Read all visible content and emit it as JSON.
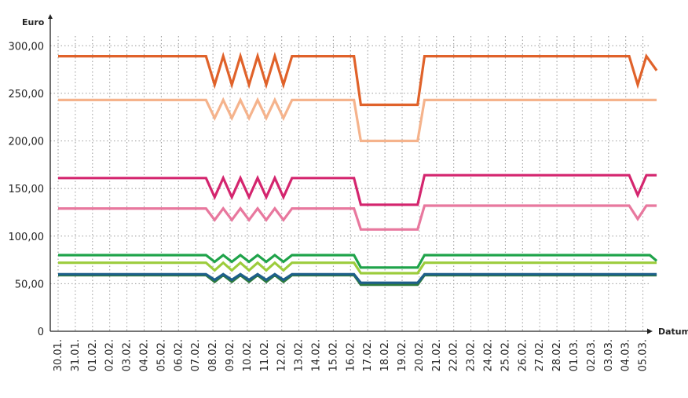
{
  "chart_data": {
    "type": "line",
    "ylabel": "Euro",
    "xlabel": "Datum",
    "ylim": [
      0,
      325
    ],
    "grid": true,
    "y_ticks": [
      {
        "value": 0,
        "label": "0"
      },
      {
        "value": 50,
        "label": "50,00"
      },
      {
        "value": 100,
        "label": "100,00"
      },
      {
        "value": 150,
        "label": "150,00"
      },
      {
        "value": 200,
        "label": "200,00"
      },
      {
        "value": 250,
        "label": "250,00"
      },
      {
        "value": 300,
        "label": "300,00"
      }
    ],
    "categories": [
      "30.01.",
      "31.01.",
      "01.02.",
      "02.02.",
      "03.02.",
      "04.02.",
      "05.02.",
      "06.02.",
      "07.02.",
      "08.02.",
      "09.02.",
      "10.02.",
      "11.02.",
      "12.02.",
      "13.02.",
      "14.02.",
      "15.02.",
      "16.02.",
      "17.02.",
      "18.02.",
      "19.02.",
      "20.02.",
      "21.02.",
      "22.02.",
      "23.02.",
      "24.02.",
      "25.02.",
      "26.02.",
      "27.02.",
      "28.02.",
      "01.03.",
      "02.03.",
      "03.03.",
      "04.03.",
      "05.03."
    ],
    "series": [
      {
        "color": "#e0622a",
        "x": [
          0,
          8.6,
          9.1,
          9.6,
          10.1,
          10.6,
          11.1,
          11.6,
          12.1,
          12.6,
          13.1,
          13.6,
          14.1,
          17.2,
          17.6,
          20.9,
          21.3,
          33.2,
          33.7,
          34.2,
          34.8
        ],
        "values": [
          289,
          289,
          259,
          289,
          259,
          289,
          259,
          289,
          259,
          289,
          259,
          289,
          289,
          289,
          238,
          238,
          289,
          289,
          259,
          289,
          274
        ]
      },
      {
        "color": "#f5b38c",
        "x": [
          0,
          8.6,
          9.1,
          9.6,
          10.1,
          10.6,
          11.1,
          11.6,
          12.1,
          12.6,
          13.1,
          13.6,
          14.1,
          17.2,
          17.6,
          20.9,
          21.3,
          34.8
        ],
        "values": [
          243,
          243,
          224,
          243,
          224,
          243,
          224,
          243,
          224,
          243,
          224,
          243,
          243,
          243,
          200,
          200,
          243,
          243
        ]
      },
      {
        "color": "#d4256e",
        "x": [
          0,
          8.6,
          9.1,
          9.6,
          10.1,
          10.6,
          11.1,
          11.6,
          12.1,
          12.6,
          13.1,
          13.6,
          14.1,
          17.2,
          17.6,
          20.9,
          21.3,
          33.2,
          33.7,
          34.2,
          34.8
        ],
        "values": [
          161,
          161,
          141,
          161,
          141,
          161,
          141,
          161,
          141,
          161,
          141,
          161,
          161,
          161,
          133,
          133,
          164,
          164,
          143,
          164,
          164
        ]
      },
      {
        "color": "#e8789e",
        "x": [
          0,
          8.6,
          9.1,
          9.6,
          10.1,
          10.6,
          11.1,
          11.6,
          12.1,
          12.6,
          13.1,
          13.6,
          14.1,
          17.2,
          17.6,
          20.9,
          21.3,
          33.2,
          33.7,
          34.2,
          34.8
        ],
        "values": [
          129,
          129,
          117,
          129,
          117,
          129,
          117,
          129,
          117,
          129,
          117,
          129,
          129,
          129,
          107,
          107,
          132,
          132,
          118,
          132,
          132
        ]
      },
      {
        "color": "#1fa34a",
        "x": [
          0,
          8.6,
          9.1,
          9.6,
          10.1,
          10.6,
          11.1,
          11.6,
          12.1,
          12.6,
          13.1,
          13.6,
          14.1,
          17.2,
          17.6,
          20.9,
          21.3,
          34.4,
          34.8
        ],
        "values": [
          80,
          80,
          73,
          80,
          73,
          80,
          73,
          80,
          73,
          80,
          73,
          80,
          80,
          80,
          67,
          67,
          80,
          80,
          74
        ]
      },
      {
        "color": "#9ccc3c",
        "x": [
          0,
          8.6,
          9.1,
          9.6,
          10.1,
          10.6,
          11.1,
          11.6,
          12.1,
          12.6,
          13.1,
          13.6,
          14.1,
          17.2,
          17.6,
          20.9,
          21.3,
          34.8
        ],
        "values": [
          72,
          72,
          64,
          72,
          64,
          72,
          64,
          72,
          64,
          72,
          64,
          72,
          72,
          72,
          61,
          61,
          72,
          72
        ]
      },
      {
        "color": "#2d7a3e",
        "x": [
          0,
          8.6,
          9.1,
          9.6,
          10.1,
          10.6,
          11.1,
          11.6,
          12.1,
          12.6,
          13.1,
          13.6,
          14.1,
          17.2,
          17.6,
          20.9,
          21.3,
          34.8
        ],
        "values": [
          59,
          59,
          52,
          59,
          52,
          59,
          52,
          59,
          52,
          59,
          52,
          59,
          59,
          59,
          49,
          49,
          59,
          59
        ]
      },
      {
        "color": "#1e5f8a",
        "x": [
          0,
          8.6,
          9.1,
          9.6,
          10.1,
          10.6,
          11.1,
          11.6,
          12.1,
          12.6,
          13.1,
          13.6,
          14.1,
          17.2,
          17.6,
          20.9,
          21.3,
          34.8
        ],
        "values": [
          60,
          60,
          54,
          60,
          54,
          60,
          54,
          60,
          54,
          60,
          54,
          60,
          60,
          60,
          51,
          51,
          60,
          60
        ]
      }
    ]
  }
}
